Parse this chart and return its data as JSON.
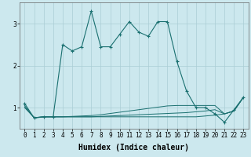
{
  "xlabel": "Humidex (Indice chaleur)",
  "ylabel": "",
  "bg_color": "#cce8ee",
  "grid_color": "#aacdd5",
  "line_color": "#1a7070",
  "x": [
    0,
    1,
    2,
    3,
    4,
    5,
    6,
    7,
    8,
    9,
    10,
    11,
    12,
    13,
    14,
    15,
    16,
    17,
    18,
    19,
    20,
    21,
    22,
    23
  ],
  "y_main": [
    1.1,
    0.75,
    0.78,
    0.78,
    2.5,
    2.35,
    2.45,
    3.3,
    2.45,
    2.45,
    2.75,
    3.05,
    2.8,
    2.7,
    3.05,
    3.05,
    2.1,
    1.4,
    1.0,
    1.0,
    0.85,
    0.65,
    0.95,
    1.25
  ],
  "y_line2": [
    1.05,
    0.76,
    0.78,
    0.78,
    0.78,
    0.79,
    0.8,
    0.81,
    0.83,
    0.86,
    0.89,
    0.92,
    0.95,
    0.98,
    1.01,
    1.04,
    1.05,
    1.05,
    1.05,
    1.05,
    1.05,
    0.85,
    0.92,
    1.25
  ],
  "y_line3": [
    1.02,
    0.76,
    0.78,
    0.78,
    0.78,
    0.78,
    0.78,
    0.78,
    0.79,
    0.8,
    0.81,
    0.82,
    0.83,
    0.84,
    0.85,
    0.86,
    0.87,
    0.88,
    0.9,
    0.92,
    0.95,
    0.85,
    0.92,
    1.25
  ],
  "y_line4": [
    1.0,
    0.76,
    0.78,
    0.78,
    0.78,
    0.78,
    0.78,
    0.78,
    0.78,
    0.78,
    0.78,
    0.78,
    0.78,
    0.78,
    0.78,
    0.78,
    0.78,
    0.78,
    0.78,
    0.8,
    0.82,
    0.85,
    0.92,
    1.25
  ],
  "ylim": [
    0.5,
    3.5
  ],
  "yticks": [
    1,
    2,
    3
  ],
  "xticks": [
    0,
    1,
    2,
    3,
    4,
    5,
    6,
    7,
    8,
    9,
    10,
    11,
    12,
    13,
    14,
    15,
    16,
    17,
    18,
    19,
    20,
    21,
    22,
    23
  ],
  "axis_fontsize": 6.5,
  "tick_fontsize": 5.5,
  "xlabel_fontsize": 7
}
